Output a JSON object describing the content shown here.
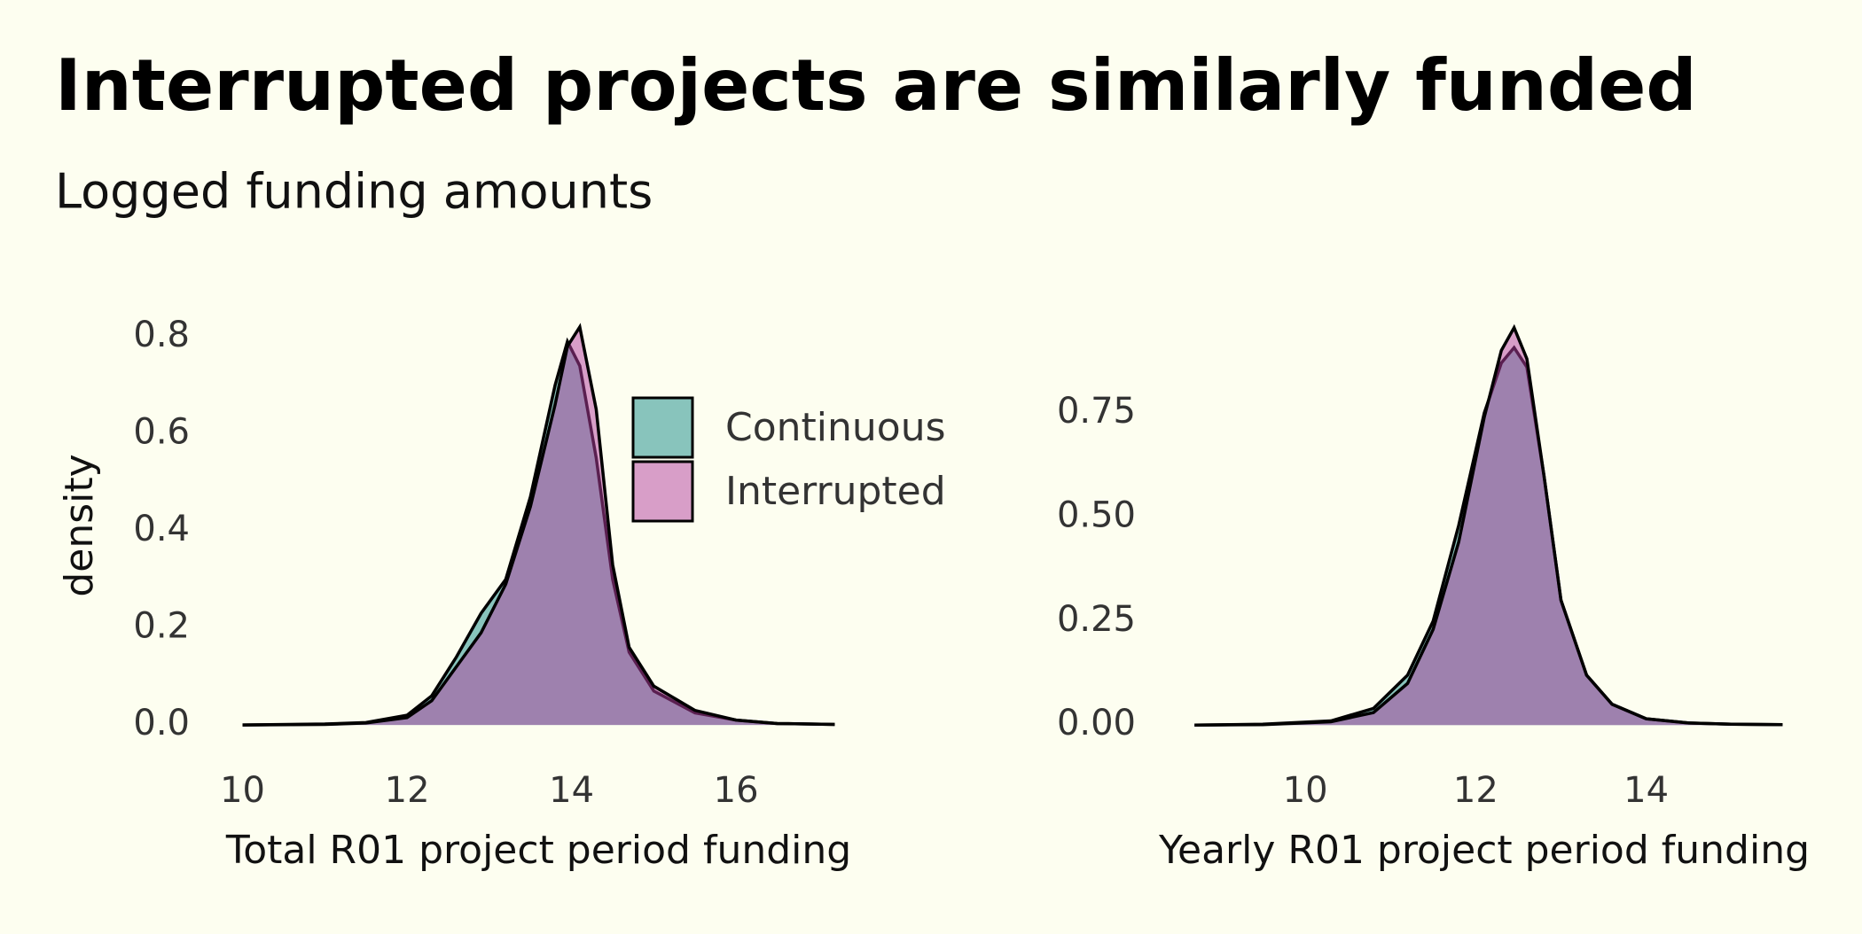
{
  "title": "Interrupted projects are similarly funded",
  "subtitle": "Logged funding amounts",
  "chart_data": [
    {
      "type": "density",
      "x_label": "Total R01 project period funding",
      "y_label": "density",
      "x": [
        10,
        11,
        11.5,
        12,
        12.3,
        12.6,
        12.9,
        13.2,
        13.5,
        13.8,
        13.95,
        14.1,
        14.3,
        14.5,
        14.7,
        15,
        15.5,
        16,
        16.5,
        17.2
      ],
      "series": [
        {
          "name": "Continuous",
          "color": "#138a88",
          "values": [
            0,
            0.002,
            0.005,
            0.02,
            0.06,
            0.14,
            0.23,
            0.3,
            0.47,
            0.7,
            0.79,
            0.74,
            0.55,
            0.3,
            0.15,
            0.07,
            0.025,
            0.01,
            0.003,
            0.001
          ]
        },
        {
          "name": "Interrupted",
          "color": "#b43e9f",
          "values": [
            0,
            0.001,
            0.004,
            0.015,
            0.05,
            0.12,
            0.19,
            0.29,
            0.45,
            0.66,
            0.78,
            0.82,
            0.65,
            0.33,
            0.16,
            0.08,
            0.03,
            0.01,
            0.003,
            0.001
          ]
        }
      ],
      "xlim": [
        9.8,
        17.4
      ],
      "ylim": [
        -0.04,
        0.84
      ],
      "xticks": [
        10,
        12,
        14,
        16
      ],
      "yticks": [
        {
          "value": 0,
          "label": "0.0"
        },
        0.2,
        0.4,
        0.6,
        0.8
      ],
      "legend": "inside top right"
    },
    {
      "type": "density",
      "x_label": "Yearly R01 project period funding",
      "x": [
        8.7,
        9.5,
        10.3,
        10.8,
        11.2,
        11.5,
        11.8,
        12.1,
        12.3,
        12.45,
        12.6,
        12.8,
        13,
        13.3,
        13.6,
        14,
        14.5,
        15,
        15.6
      ],
      "series": [
        {
          "color": "#138a88",
          "values": [
            0,
            0.002,
            0.01,
            0.04,
            0.12,
            0.25,
            0.48,
            0.75,
            0.87,
            0.907,
            0.86,
            0.6,
            0.3,
            0.12,
            0.05,
            0.015,
            0.005,
            0.002,
            0.001
          ]
        },
        {
          "color": "#b43e9f",
          "values": [
            0,
            0.001,
            0.008,
            0.03,
            0.1,
            0.23,
            0.44,
            0.74,
            0.9,
            0.955,
            0.88,
            0.6,
            0.3,
            0.12,
            0.05,
            0.015,
            0.005,
            0.002,
            0.001
          ]
        }
      ],
      "xlim": [
        8.5,
        15.7
      ],
      "ylim": [
        -0.04,
        0.98
      ],
      "xticks": [
        10,
        12,
        14
      ],
      "yticks": [
        {
          "value": 0,
          "label": "0.00"
        },
        0.25,
        {
          "value": 0.5,
          "label": "0.50"
        },
        0.75
      ]
    }
  ]
}
